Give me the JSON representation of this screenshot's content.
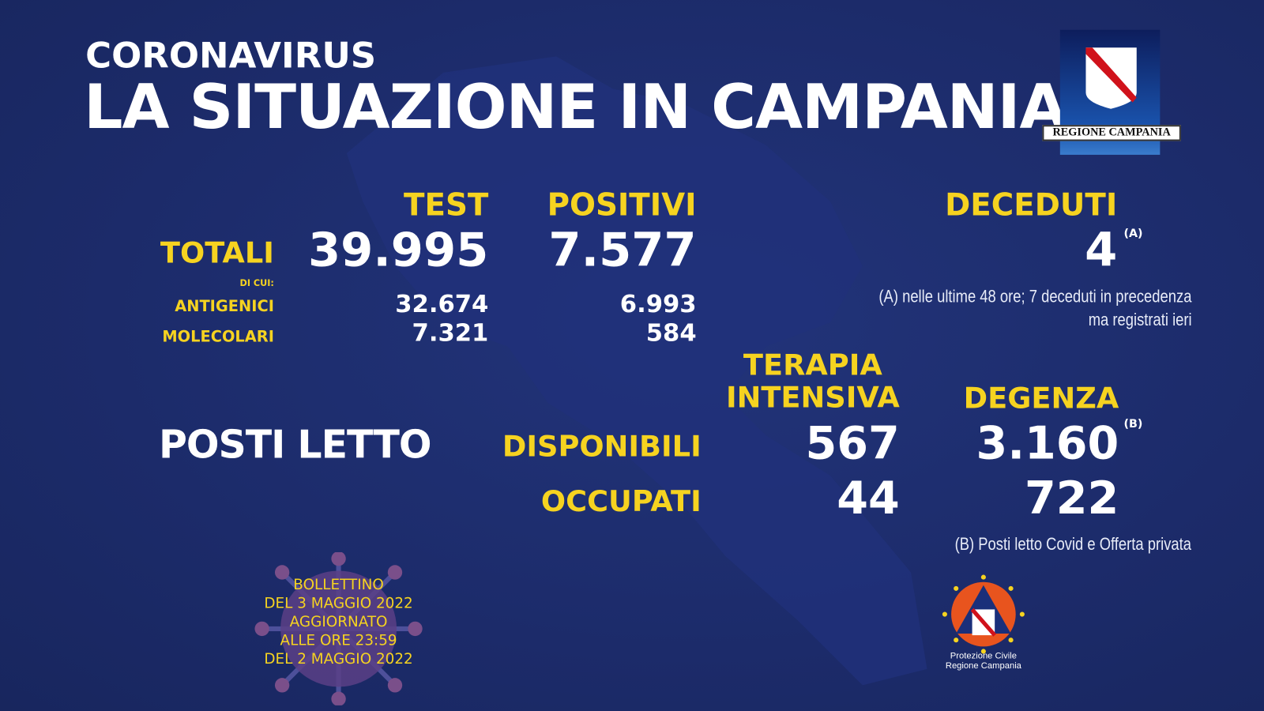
{
  "header": {
    "kicker": "CORONAVIRUS",
    "title": "LA SITUAZIONE IN CAMPANIA"
  },
  "logo_region": {
    "text": "REGIONE CAMPANIA"
  },
  "columns": {
    "test": "TEST",
    "positivi": "POSITIVI",
    "deceduti": "DECEDUTI"
  },
  "totali": {
    "label": "TOTALI",
    "test": "39.995",
    "positivi": "7.577",
    "deceduti": "4",
    "deceduti_note_mark": "(A)"
  },
  "di_cui": "DI CUI:",
  "antigenici": {
    "label": "ANTIGENICI",
    "test": "32.674",
    "positivi": "6.993"
  },
  "molecolari": {
    "label": "MOLECOLARI",
    "test": "7.321",
    "positivi": "584"
  },
  "note_a": [
    "(A) nelle ultime 48 ore; 7 deceduti in precedenza",
    "ma registrati ieri"
  ],
  "posti_letto": {
    "label": "POSTI LETTO",
    "terapia_intensiva": [
      "TERAPIA",
      "INTENSIVA"
    ],
    "degenza": "DEGENZA",
    "disponibili": {
      "label": "DISPONIBILI",
      "ti": "567",
      "degenza": "3.160",
      "note_mark": "(B)"
    },
    "occupati": {
      "label": "OCCUPATI",
      "ti": "44",
      "degenza": "722"
    }
  },
  "note_b": "(B) Posti letto Covid e Offerta privata",
  "bollettino": [
    "BOLLETTINO",
    "DEL 3 MAGGIO 2022",
    "AGGIORNATO",
    "ALLE ORE 23:59",
    "DEL 2 MAGGIO 2022"
  ],
  "protezione_civile": [
    "Protezione Civile",
    "Regione Campania"
  ],
  "colors": {
    "background": "#1c2b6a",
    "accent": "#f6d320",
    "text": "#ffffff"
  }
}
